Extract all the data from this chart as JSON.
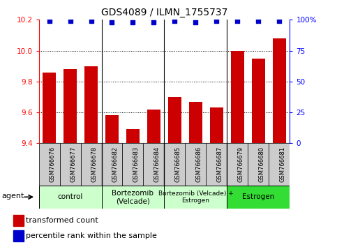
{
  "title": "GDS4089 / ILMN_1755737",
  "samples": [
    "GSM766676",
    "GSM766677",
    "GSM766678",
    "GSM766682",
    "GSM766683",
    "GSM766684",
    "GSM766685",
    "GSM766686",
    "GSM766687",
    "GSM766679",
    "GSM766680",
    "GSM766681"
  ],
  "bar_values": [
    9.86,
    9.88,
    9.9,
    9.58,
    9.49,
    9.62,
    9.7,
    9.67,
    9.63,
    10.0,
    9.95,
    10.08
  ],
  "percentile_values": [
    99,
    99,
    99,
    98,
    98,
    98,
    99,
    98,
    99,
    99,
    99,
    99
  ],
  "bar_color": "#cc0000",
  "percentile_color": "#0000cc",
  "ylim_left": [
    9.4,
    10.2
  ],
  "ylim_right": [
    0,
    100
  ],
  "yticks_left": [
    9.4,
    9.6,
    9.8,
    10.0,
    10.2
  ],
  "yticks_right": [
    0,
    25,
    50,
    75,
    100
  ],
  "grid_lines": [
    9.6,
    9.8,
    10.0
  ],
  "groups": [
    {
      "label": "control",
      "start": 0,
      "end": 3,
      "color": "#ccffcc",
      "bright": false
    },
    {
      "label": "Bortezomib\n(Velcade)",
      "start": 3,
      "end": 6,
      "color": "#ccffcc",
      "bright": false
    },
    {
      "label": "Bortezomib (Velcade) +\nEstrogen",
      "start": 6,
      "end": 9,
      "color": "#ccffcc",
      "bright": false
    },
    {
      "label": "Estrogen",
      "start": 9,
      "end": 12,
      "color": "#33dd33",
      "bright": true
    }
  ],
  "legend_bar_label": "transformed count",
  "legend_dot_label": "percentile rank within the sample",
  "agent_label": "agent",
  "background_color": "#ffffff",
  "tick_area_color": "#cccccc"
}
